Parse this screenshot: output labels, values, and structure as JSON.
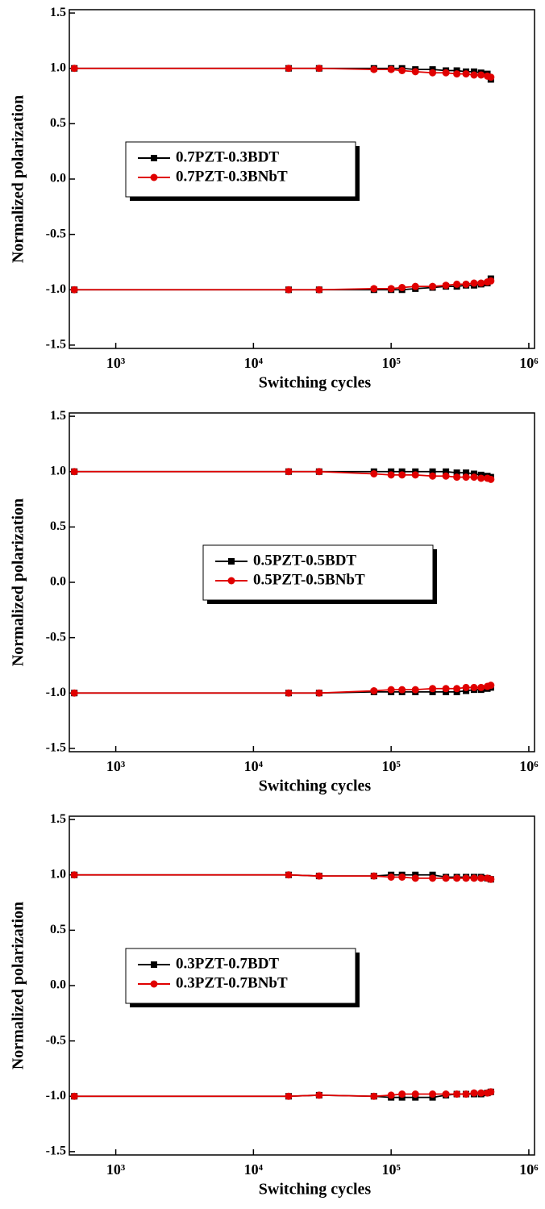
{
  "chart_data": [
    {
      "type": "line",
      "xlabel": "Switching cycles",
      "ylabel": "Normalized polarization",
      "xscale": "log",
      "legend": "center-left",
      "xlim": [
        460,
        1100000
      ],
      "xticks": [
        {
          "value": 1000,
          "label": "10³"
        },
        {
          "value": 10000,
          "label": "10⁴"
        },
        {
          "value": 100000,
          "label": "10⁵"
        },
        {
          "value": 1000000,
          "label": "10⁶"
        }
      ],
      "ylim": [
        -1.53,
        1.53
      ],
      "yticks": [
        1.5,
        {
          "value": 1,
          "label": "1.0"
        },
        0.5,
        {
          "value": 0,
          "label": "0.0"
        },
        -0.5,
        {
          "value": -1,
          "label": "-1.0"
        },
        -1.5
      ],
      "x": [
        500,
        18000,
        30000,
        75000,
        100000,
        120000,
        150000,
        200000,
        250000,
        300000,
        350000,
        400000,
        450000,
        500000,
        530000
      ],
      "series": [
        {
          "name": "0.7PZT-0.3BDT",
          "color": "#000000",
          "marker": "square",
          "values": [
            1,
            1,
            1,
            1,
            1,
            1,
            0.99,
            0.99,
            0.98,
            0.98,
            0.97,
            0.97,
            0.96,
            0.95,
            0.9
          ]
        },
        {
          "name": "0.7PZT-0.3BNbT",
          "color": "#e00000",
          "marker": "circle",
          "values": [
            1,
            1,
            1,
            0.99,
            0.99,
            0.98,
            0.97,
            0.96,
            0.96,
            0.95,
            0.95,
            0.94,
            0.94,
            0.93,
            0.92
          ]
        },
        {
          "color": "#000000",
          "marker": "square",
          "values": [
            -1,
            -1,
            -1,
            -1,
            -1,
            -1,
            -0.99,
            -0.98,
            -0.97,
            -0.97,
            -0.96,
            -0.96,
            -0.95,
            -0.94,
            -0.9
          ]
        },
        {
          "color": "#e00000",
          "marker": "circle",
          "values": [
            -1,
            -1,
            -1,
            -0.99,
            -0.99,
            -0.98,
            -0.97,
            -0.97,
            -0.96,
            -0.95,
            -0.95,
            -0.94,
            -0.94,
            -0.93,
            -0.92
          ]
        }
      ]
    },
    {
      "type": "line",
      "xlabel": "Switching cycles",
      "ylabel": "Normalized polarization",
      "xscale": "log",
      "legend": "center",
      "xlim": [
        460,
        1100000
      ],
      "xticks": [
        {
          "value": 1000,
          "label": "10³"
        },
        {
          "value": 10000,
          "label": "10⁴"
        },
        {
          "value": 100000,
          "label": "10⁵"
        },
        {
          "value": 1000000,
          "label": "10⁶"
        }
      ],
      "ylim": [
        -1.53,
        1.53
      ],
      "yticks": [
        1.5,
        {
          "value": 1,
          "label": "1.0"
        },
        0.5,
        {
          "value": 0,
          "label": "0.0"
        },
        -0.5,
        {
          "value": -1,
          "label": "-1.0"
        },
        -1.5
      ],
      "x": [
        500,
        18000,
        30000,
        75000,
        100000,
        120000,
        150000,
        200000,
        250000,
        300000,
        350000,
        400000,
        450000,
        500000,
        530000
      ],
      "series": [
        {
          "name": "0.5PZT-0.5BDT",
          "color": "#000000",
          "marker": "square",
          "values": [
            1,
            1,
            1,
            1,
            1,
            1,
            1,
            1,
            1,
            0.99,
            0.99,
            0.98,
            0.97,
            0.96,
            0.95
          ]
        },
        {
          "name": "0.5PZT-0.5BNbT",
          "color": "#e00000",
          "marker": "circle",
          "values": [
            1,
            1,
            1,
            0.98,
            0.97,
            0.97,
            0.97,
            0.96,
            0.96,
            0.95,
            0.95,
            0.95,
            0.94,
            0.94,
            0.93
          ]
        },
        {
          "color": "#000000",
          "marker": "square",
          "values": [
            -1,
            -1,
            -1,
            -0.99,
            -0.99,
            -0.99,
            -0.99,
            -0.99,
            -0.99,
            -0.99,
            -0.98,
            -0.97,
            -0.97,
            -0.96,
            -0.95
          ]
        },
        {
          "color": "#e00000",
          "marker": "circle",
          "values": [
            -1,
            -1,
            -1,
            -0.98,
            -0.97,
            -0.97,
            -0.97,
            -0.96,
            -0.96,
            -0.96,
            -0.95,
            -0.95,
            -0.95,
            -0.94,
            -0.93
          ]
        }
      ]
    },
    {
      "type": "line",
      "xlabel": "Switching cycles",
      "ylabel": "Normalized polarization",
      "xscale": "log",
      "legend": "center-left",
      "xlim": [
        460,
        1100000
      ],
      "xticks": [
        {
          "value": 1000,
          "label": "10³"
        },
        {
          "value": 10000,
          "label": "10⁴"
        },
        {
          "value": 100000,
          "label": "10⁵"
        },
        {
          "value": 1000000,
          "label": "10⁶"
        }
      ],
      "ylim": [
        -1.53,
        1.53
      ],
      "yticks": [
        1.5,
        {
          "value": 1,
          "label": "1.0"
        },
        0.5,
        {
          "value": 0,
          "label": "0.0"
        },
        -0.5,
        {
          "value": -1,
          "label": "-1.0"
        },
        -1.5
      ],
      "x": [
        500,
        18000,
        30000,
        75000,
        100000,
        120000,
        150000,
        200000,
        250000,
        300000,
        350000,
        400000,
        450000,
        500000,
        530000
      ],
      "series": [
        {
          "name": "0.3PZT-0.7BDT",
          "color": "#000000",
          "marker": "square",
          "values": [
            1,
            1,
            0.99,
            0.99,
            1,
            1,
            1,
            1,
            0.98,
            0.98,
            0.98,
            0.98,
            0.98,
            0.97,
            0.96
          ]
        },
        {
          "name": "0.3PZT-0.7BNbT",
          "color": "#e00000",
          "marker": "circle",
          "values": [
            1,
            1,
            0.99,
            0.99,
            0.98,
            0.98,
            0.97,
            0.97,
            0.97,
            0.97,
            0.97,
            0.97,
            0.97,
            0.97,
            0.96
          ]
        },
        {
          "color": "#000000",
          "marker": "square",
          "values": [
            -1,
            -1,
            -0.99,
            -1,
            -1.01,
            -1.01,
            -1.01,
            -1.01,
            -0.99,
            -0.98,
            -0.98,
            -0.98,
            -0.98,
            -0.97,
            -0.96
          ]
        },
        {
          "color": "#e00000",
          "marker": "circle",
          "values": [
            -1,
            -1,
            -0.99,
            -1,
            -0.99,
            -0.98,
            -0.98,
            -0.98,
            -0.98,
            -0.98,
            -0.98,
            -0.97,
            -0.97,
            -0.97,
            -0.96
          ]
        }
      ]
    }
  ]
}
